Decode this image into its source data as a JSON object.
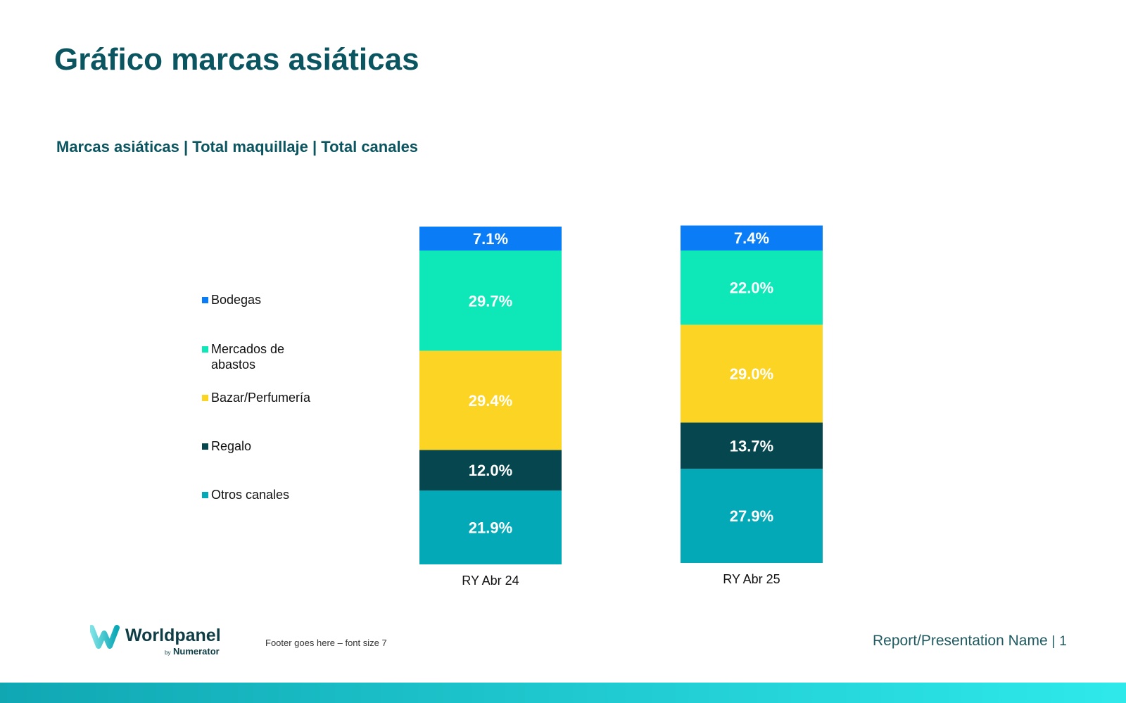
{
  "title": "Gráfico marcas asiáticas",
  "subtitle": "Marcas asiáticas | Total maquillaje | Total canales",
  "chart_data": {
    "type": "bar",
    "stacked": true,
    "categories": [
      "RY Abr 24",
      "RY Abr 25"
    ],
    "series": [
      {
        "name": "Otros canales",
        "color": "#04a9b8",
        "values": [
          21.9,
          27.9
        ],
        "labels": [
          "21.9%",
          "27.9%"
        ]
      },
      {
        "name": "Regalo",
        "color": "#05464f",
        "values": [
          12.0,
          13.7
        ],
        "labels": [
          "12.0%",
          "13.7%"
        ]
      },
      {
        "name": "Bazar/Perfumería",
        "color": "#fcd423",
        "values": [
          29.4,
          29.0
        ],
        "labels": [
          "29.4%",
          "29.0%"
        ]
      },
      {
        "name": "Mercados de abastos",
        "color": "#0ee8b8",
        "values": [
          29.7,
          22.0
        ],
        "labels": [
          "29.7%",
          "22.0%"
        ]
      },
      {
        "name": "Bodegas",
        "color": "#0a7cf5",
        "values": [
          7.1,
          7.4
        ],
        "labels": [
          "7.1%",
          "7.4%"
        ]
      }
    ],
    "legend_position": "left",
    "legend_order": [
      "Bodegas",
      "Mercados de abastos",
      "Bazar/Perfumería",
      "Regalo",
      "Otros canales"
    ],
    "ylim": [
      0,
      100
    ],
    "grid": false
  },
  "footer": {
    "logo_text": "Worldpanel",
    "logo_sub": "by Numerator",
    "note": "Footer goes here – font size 7",
    "report_name": "Report/Presentation Name",
    "separator": "|",
    "page_number": "1"
  }
}
